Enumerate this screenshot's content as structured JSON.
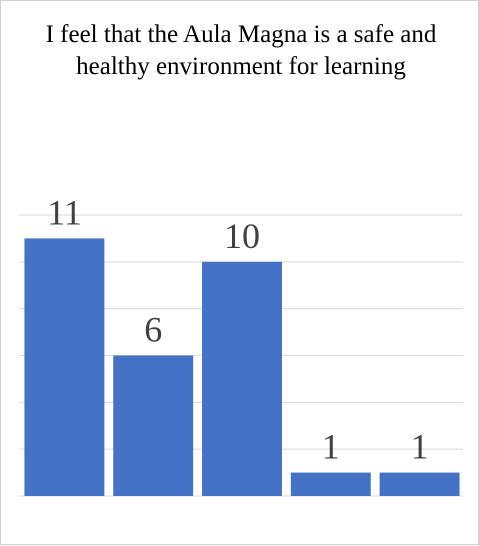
{
  "chart_data": {
    "type": "bar",
    "title": "I feel that the Aula Magna is a safe and healthy environment for learning",
    "categories": [
      "",
      "",
      "",
      "",
      ""
    ],
    "values": [
      11,
      6,
      10,
      1,
      1
    ],
    "data_labels": [
      "11",
      "6",
      "10",
      "1",
      "1"
    ],
    "xlabel": "",
    "ylabel": "",
    "ylim": [
      0,
      12
    ],
    "grid": true,
    "legend": "none",
    "bar_color": "#4472c4",
    "grid_color": "#d9d9d9"
  }
}
